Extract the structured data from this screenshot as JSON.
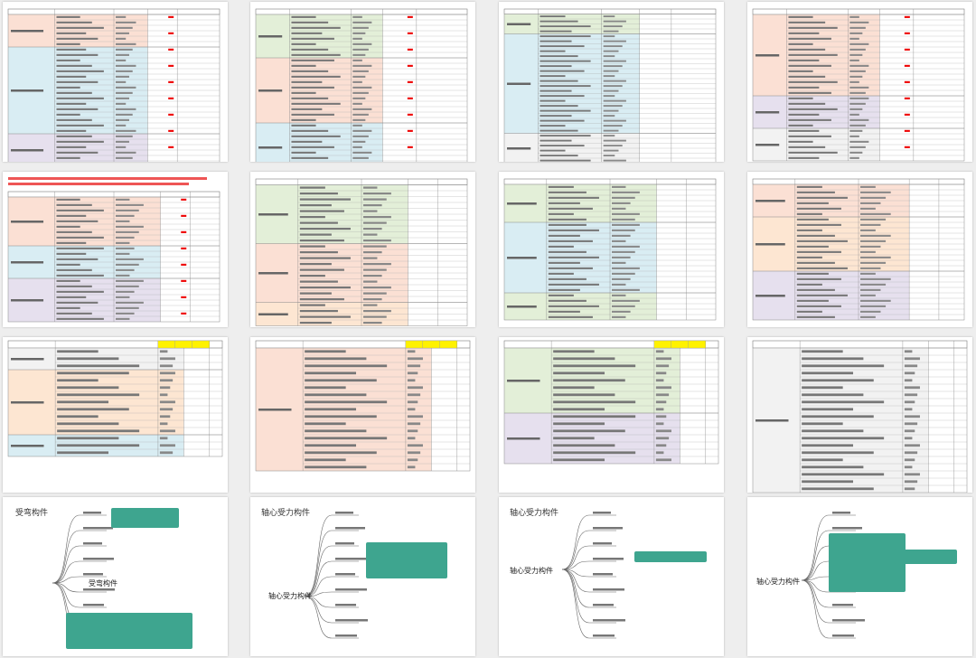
{
  "mind_maps": [
    {
      "title": "受弯构件",
      "center": "受弯构件"
    },
    {
      "title": "轴心受力构件",
      "center": "轴心受力构件"
    },
    {
      "title": "轴心受力构件",
      "center": "轴心受力构件"
    },
    {
      "center": "轴心受力构件"
    }
  ]
}
